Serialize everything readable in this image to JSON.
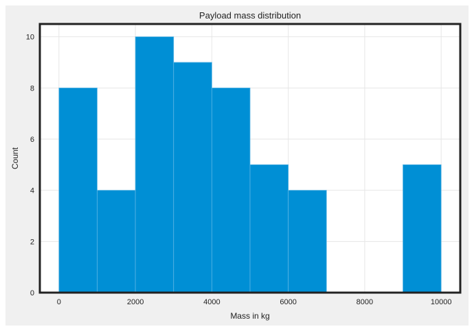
{
  "chart_data": {
    "type": "bar",
    "title": "Payload mass distribution",
    "xlabel": "Mass in kg",
    "ylabel": "Count",
    "xlim": [
      -500,
      10500
    ],
    "ylim": [
      0,
      10.5
    ],
    "xticks": [
      0,
      2000,
      4000,
      6000,
      8000,
      10000
    ],
    "yticks": [
      0,
      2,
      4,
      6,
      8,
      10
    ],
    "grid": true,
    "bar_color": "#008fd5",
    "bins": [
      {
        "start": 0,
        "end": 1000,
        "count": 8
      },
      {
        "start": 1000,
        "end": 2000,
        "count": 4
      },
      {
        "start": 2000,
        "end": 3000,
        "count": 10
      },
      {
        "start": 3000,
        "end": 4000,
        "count": 9
      },
      {
        "start": 4000,
        "end": 5000,
        "count": 8
      },
      {
        "start": 5000,
        "end": 6000,
        "count": 5
      },
      {
        "start": 6000,
        "end": 7000,
        "count": 4
      },
      {
        "start": 7000,
        "end": 8000,
        "count": 0
      },
      {
        "start": 8000,
        "end": 9000,
        "count": 0
      },
      {
        "start": 9000,
        "end": 10000,
        "count": 5
      }
    ]
  }
}
